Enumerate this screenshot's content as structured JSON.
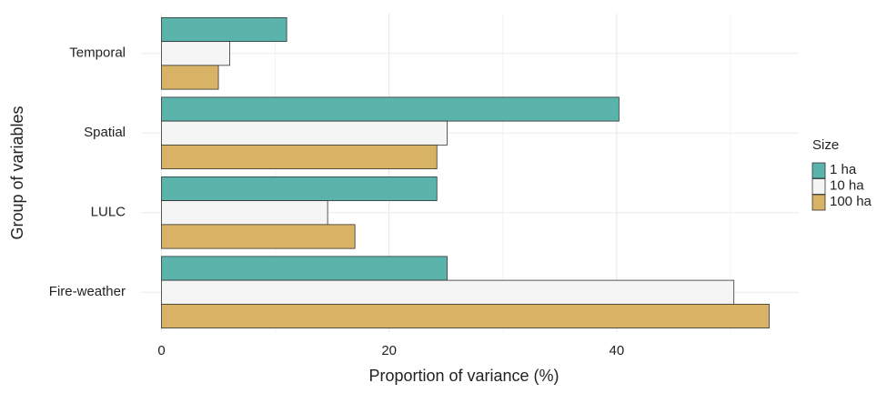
{
  "chart_data": {
    "type": "grouped-hbar",
    "x_label": "Proportion of variance (%)",
    "y_label": "Group of variables",
    "categories": [
      "Temporal",
      "Spatial",
      "LULC",
      "Fire-weather"
    ],
    "series": [
      {
        "name": "1 ha",
        "color": "#5ab4ac",
        "values": [
          11.0,
          40.2,
          24.2,
          25.1
        ]
      },
      {
        "name": "10 ha",
        "color": "#f5f5f5",
        "values": [
          6.0,
          25.1,
          14.6,
          50.3
        ]
      },
      {
        "name": "100 ha",
        "color": "#d8b365",
        "values": [
          5.0,
          24.2,
          17.0,
          53.4
        ]
      }
    ],
    "xlim": [
      -1.8,
      56
    ],
    "xticks": [
      0,
      20,
      40
    ],
    "xminor": [
      10,
      30,
      50
    ],
    "grid": true,
    "legend_title": "Size",
    "legend_position": "right"
  }
}
